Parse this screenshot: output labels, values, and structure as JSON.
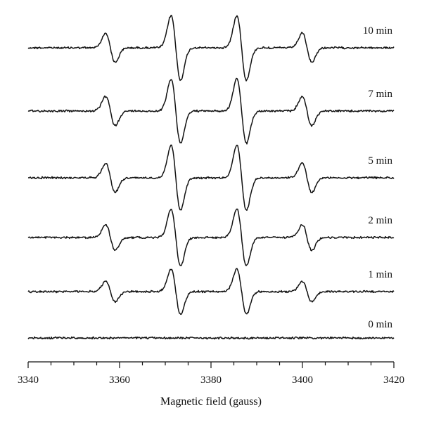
{
  "chart_data": {
    "type": "line",
    "xlabel": "Magnetic field (gauss)",
    "xlim": [
      3340,
      3420
    ],
    "xticks": [
      3340,
      3360,
      3380,
      3400,
      3420
    ],
    "xtick_labels": [
      "3340",
      "3360",
      "3380",
      "3400",
      "3420"
    ],
    "x_minor_step": 5,
    "line_color": "#111111",
    "lines": [
      {
        "field": 3358.0,
        "relative_intensity": 0.45
      },
      {
        "field": 3372.3,
        "relative_intensity": 1.0
      },
      {
        "field": 3386.7,
        "relative_intensity": 1.0
      },
      {
        "field": 3401.0,
        "relative_intensity": 0.45
      }
    ],
    "series": [
      {
        "name": "10 min",
        "amplitude": 1.0
      },
      {
        "name": "7 min",
        "amplitude": 1.0
      },
      {
        "name": "5 min",
        "amplitude": 1.0
      },
      {
        "name": "2 min",
        "amplitude": 0.88
      },
      {
        "name": "1 min",
        "amplitude": 0.7
      },
      {
        "name": "0 min",
        "amplitude": 0.0
      }
    ]
  }
}
